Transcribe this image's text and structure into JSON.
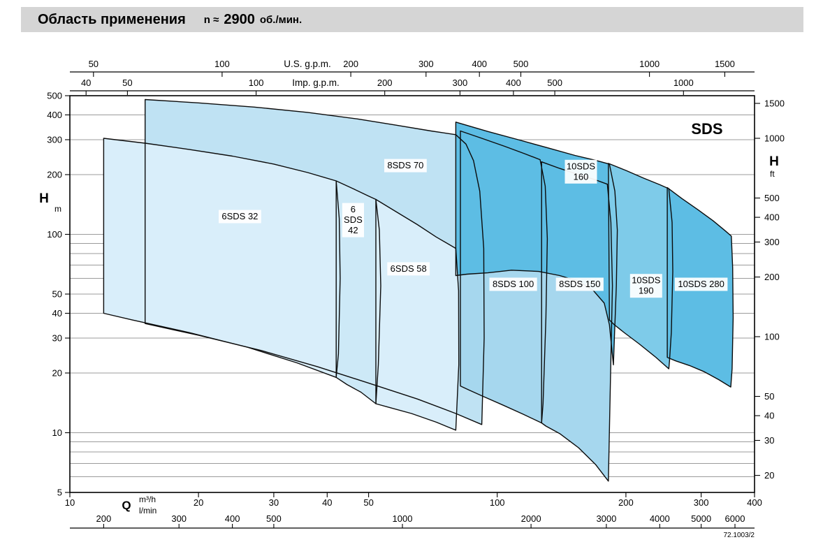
{
  "header": {
    "title": "Область применения",
    "speed_prefix": "n ≈",
    "speed_value": "2900",
    "speed_unit": "об./мин."
  },
  "chart_data": {
    "type": "area",
    "title": "Область применения n ≈ 2900 об./мин.",
    "series_label": "SDS",
    "doc_code": "72.1003/2",
    "grid": true,
    "x_axis": {
      "q_label": "Q",
      "unit_m3h": "m³/h",
      "unit_lmin": "l/min",
      "range_m3h": [
        10,
        400
      ],
      "ticks_m3h": [
        10,
        20,
        30,
        40,
        50,
        100,
        200,
        300,
        400
      ],
      "ticks_lmin": [
        200,
        300,
        400,
        500,
        1000,
        2000,
        3000,
        4000,
        5000,
        6000
      ]
    },
    "top_axis": {
      "us_label": "U.S. g.p.m.",
      "imp_label": "Imp. g.p.m.",
      "ticks_us": [
        50,
        100,
        200,
        300,
        400,
        500,
        1000,
        1500
      ],
      "ticks_imp": [
        40,
        50,
        100,
        200,
        300,
        400,
        500,
        1000
      ]
    },
    "y_axis_left": {
      "label": "H",
      "unit": "m",
      "range": [
        5,
        500
      ],
      "ticks": [
        500,
        400,
        300,
        200,
        100,
        50,
        40,
        30,
        20,
        10,
        5
      ]
    },
    "y_axis_right": {
      "label": "H",
      "unit": "ft",
      "ticks": [
        1500,
        1000,
        500,
        400,
        300,
        200,
        100,
        50,
        40,
        30,
        20
      ]
    },
    "draw_order": [
      "8SDS 70",
      "8SDS 100",
      "8SDS 150",
      "10SDS 160",
      "10SDS 190",
      "10SDS 280",
      "6SDS 32",
      "6SDS 42",
      "6SDS 58"
    ],
    "regions": [
      {
        "name": "6SDS 32",
        "label_lines": [
          "6SDS 32"
        ],
        "label_at": [
          25,
          123
        ],
        "fill": "#d9eefa",
        "points": [
          [
            12,
            305
          ],
          [
            15,
            288
          ],
          [
            19,
            268
          ],
          [
            24,
            248
          ],
          [
            30,
            226
          ],
          [
            36,
            205
          ],
          [
            42,
            186
          ],
          [
            42.7,
            120
          ],
          [
            42.9,
            60
          ],
          [
            42.5,
            25
          ],
          [
            42,
            19
          ],
          [
            34,
            22.5
          ],
          [
            26,
            27
          ],
          [
            19,
            32
          ],
          [
            14,
            37
          ],
          [
            12,
            40
          ]
        ]
      },
      {
        "name": "6SDS 42",
        "label_lines": [
          "6",
          "SDS",
          "42"
        ],
        "label_at": [
          46,
          118
        ],
        "fill": "#cde9f7",
        "points": [
          [
            42,
            186
          ],
          [
            46,
            170
          ],
          [
            50,
            156
          ],
          [
            52,
            150
          ],
          [
            53,
            105
          ],
          [
            53.4,
            55
          ],
          [
            52.7,
            22
          ],
          [
            52,
            14
          ],
          [
            48,
            16
          ],
          [
            44.5,
            17.5
          ],
          [
            42,
            19
          ]
        ]
      },
      {
        "name": "6SDS 58",
        "label_lines": [
          "6SDS 58"
        ],
        "label_at": [
          62,
          67
        ],
        "fill": "#d9eefa",
        "points": [
          [
            52,
            150
          ],
          [
            58,
            130
          ],
          [
            65,
            112
          ],
          [
            72,
            97
          ],
          [
            80,
            85
          ],
          [
            81.2,
            52
          ],
          [
            81.3,
            22
          ],
          [
            80,
            10.3
          ],
          [
            72,
            11.3
          ],
          [
            63,
            12.5
          ],
          [
            56,
            13.4
          ],
          [
            52,
            14
          ]
        ]
      },
      {
        "name": "8SDS 70",
        "label_lines": [
          "8SDS 70"
        ],
        "label_at": [
          61,
          222
        ],
        "fill": "#bfe2f3",
        "points": [
          [
            15,
            478
          ],
          [
            20,
            460
          ],
          [
            27,
            438
          ],
          [
            36,
            412
          ],
          [
            47,
            382
          ],
          [
            58,
            355
          ],
          [
            70,
            332
          ],
          [
            80,
            318
          ],
          [
            84.5,
            285
          ],
          [
            88,
            235
          ],
          [
            91,
            165
          ],
          [
            93,
            85
          ],
          [
            93.2,
            30
          ],
          [
            92,
            11
          ],
          [
            80,
            12.5
          ],
          [
            65,
            14.8
          ],
          [
            50,
            17.8
          ],
          [
            38,
            21.5
          ],
          [
            28,
            26
          ],
          [
            20,
            31
          ],
          [
            15,
            35.5
          ]
        ]
      },
      {
        "name": "8SDS 100",
        "label_lines": [
          "8SDS 100"
        ],
        "label_at": [
          109,
          56
        ],
        "fill": "#a6d7ee",
        "points": [
          [
            82,
            332
          ],
          [
            92,
            305
          ],
          [
            104,
            278
          ],
          [
            116,
            255
          ],
          [
            126,
            238
          ],
          [
            129.5,
            175
          ],
          [
            131,
            95
          ],
          [
            130,
            38
          ],
          [
            128,
            14
          ],
          [
            127,
            11.2
          ],
          [
            115,
            12.4
          ],
          [
            103,
            13.8
          ],
          [
            93,
            15.2
          ],
          [
            86,
            16.4
          ],
          [
            82,
            17.2
          ]
        ]
      },
      {
        "name": "8SDS 150",
        "label_lines": [
          "8SDS 150"
        ],
        "label_at": [
          156,
          56
        ],
        "fill": "#a6d7ee",
        "points": [
          [
            127,
            232
          ],
          [
            140,
            215
          ],
          [
            155,
            200
          ],
          [
            170,
            188
          ],
          [
            181,
            179
          ],
          [
            184.5,
            115
          ],
          [
            186,
            55
          ],
          [
            184,
            18
          ],
          [
            182,
            5.7
          ],
          [
            170,
            6.9
          ],
          [
            155,
            8.4
          ],
          [
            140,
            9.9
          ],
          [
            130,
            10.8
          ],
          [
            127,
            11.2
          ]
        ]
      },
      {
        "name": "10SDS 160",
        "label_lines": [
          "10SDS",
          "160"
        ],
        "label_at": [
          157,
          207
        ],
        "fill": "#5dbde4",
        "points": [
          [
            80,
            368
          ],
          [
            95,
            330
          ],
          [
            112,
            300
          ],
          [
            132,
            272
          ],
          [
            152,
            250
          ],
          [
            170,
            236
          ],
          [
            183,
            226
          ],
          [
            188.5,
            165
          ],
          [
            191,
            105
          ],
          [
            190,
            55
          ],
          [
            188,
            30
          ],
          [
            187,
            22
          ],
          [
            183,
            35
          ],
          [
            178,
            45
          ],
          [
            168,
            52
          ],
          [
            155,
            58
          ],
          [
            140,
            62
          ],
          [
            125,
            65
          ],
          [
            108,
            66
          ],
          [
            95,
            64
          ],
          [
            85,
            63
          ],
          [
            80,
            62
          ]
        ]
      },
      {
        "name": "10SDS 190",
        "label_lines": [
          "10SDS",
          "190"
        ],
        "label_at": [
          223,
          55
        ],
        "fill": "#7ecbe9",
        "points": [
          [
            182,
            228
          ],
          [
            200,
            210
          ],
          [
            220,
            192
          ],
          [
            240,
            178
          ],
          [
            252,
            170
          ],
          [
            256.5,
            115
          ],
          [
            257.5,
            65
          ],
          [
            255.5,
            32
          ],
          [
            253,
            23
          ],
          [
            252,
            21
          ],
          [
            235,
            24
          ],
          [
            215,
            28
          ],
          [
            198,
            32
          ],
          [
            188,
            35
          ],
          [
            183,
            37
          ]
        ]
      },
      {
        "name": "10SDS 280",
        "label_lines": [
          "10SDS 280"
        ],
        "label_at": [
          300,
          56
        ],
        "fill": "#5dbde4",
        "points": [
          [
            250,
            172
          ],
          [
            270,
            152
          ],
          [
            295,
            133
          ],
          [
            320,
            117
          ],
          [
            342,
            104
          ],
          [
            353,
            98
          ],
          [
            355.5,
            68
          ],
          [
            356.5,
            38
          ],
          [
            354.5,
            21
          ],
          [
            352,
            17
          ],
          [
            330,
            18.5
          ],
          [
            305,
            20.3
          ],
          [
            282,
            21.8
          ],
          [
            262,
            23
          ],
          [
            252,
            23.8
          ],
          [
            250,
            24
          ]
        ]
      }
    ]
  }
}
